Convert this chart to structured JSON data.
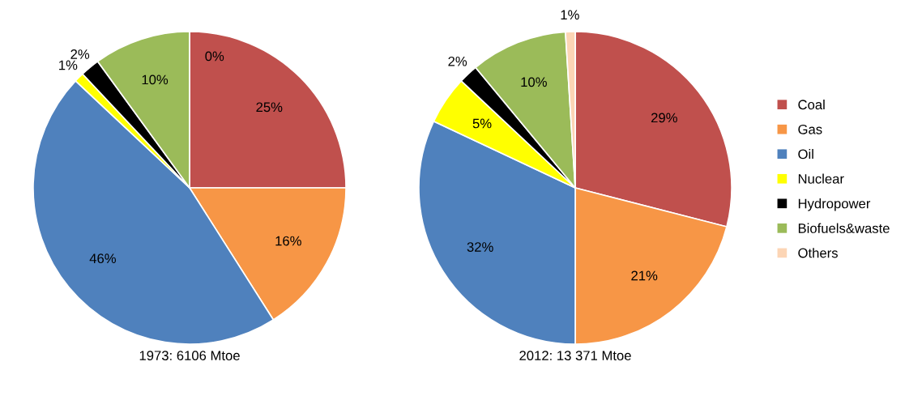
{
  "chart_data": [
    {
      "type": "pie",
      "title": "1973: 6106 Mtoe",
      "categories": [
        "Coal",
        "Gas",
        "Oil",
        "Nuclear",
        "Hydropower",
        "Biofuels&waste",
        "Others"
      ],
      "values": [
        25,
        16,
        46,
        1,
        2,
        10,
        0
      ],
      "value_labels": [
        "25%",
        "16%",
        "46%",
        "1%",
        "2%",
        "10%",
        "0%"
      ],
      "colors": [
        "#c0504d",
        "#f79646",
        "#4f81bd",
        "#ffff00",
        "#000000",
        "#9bbb59",
        "#fcd5b5"
      ],
      "legend": "right"
    },
    {
      "type": "pie",
      "title": "2012: 13 371 Mtoe",
      "categories": [
        null,
        null,
        null,
        null,
        null,
        null,
        null
      ],
      "values": [
        29,
        21,
        32,
        5,
        2,
        10,
        1
      ],
      "value_labels": [
        "29%",
        "21%",
        "32%",
        "5%",
        "2%",
        "10%",
        "1%"
      ],
      "colors": [
        "#c0504d",
        "#f79646",
        "#4f81bd",
        "#ffff00",
        "#000000",
        "#9bbb59",
        "#fcd5b5"
      ]
    }
  ]
}
